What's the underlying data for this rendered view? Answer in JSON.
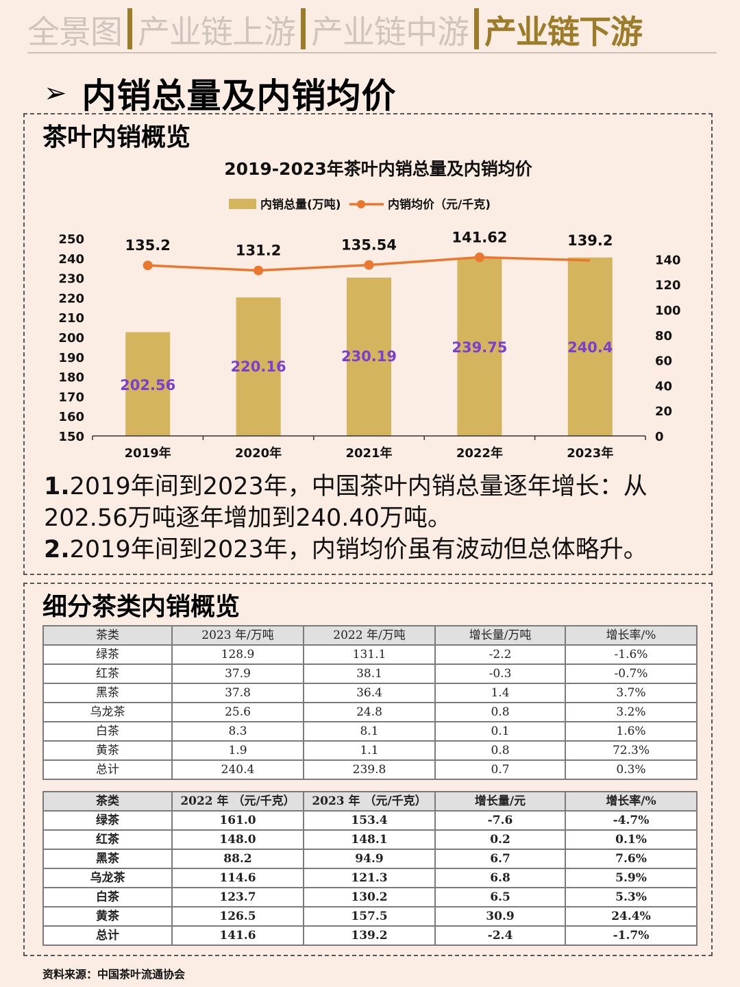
{
  "nav": {
    "tabs": [
      "全景图",
      "产业链上游",
      "产业链中游",
      "产业链下游"
    ],
    "active_index": 3,
    "accent_color": "#9c7c28"
  },
  "page_title": "内销总量及内销均价",
  "section1": {
    "title": "茶叶内销概览",
    "notes": [
      {
        "num": "1.",
        "text": "2019年间到2023年，中国茶叶内销总量逐年增长：从202.56万吨逐年增加到240.40万吨。"
      },
      {
        "num": "2.",
        "text": "2019年间到2023年，内销均价虽有波动但总体略升。"
      }
    ]
  },
  "chart_data": {
    "type": "bar",
    "title": "2019-2023年茶叶内销总量及内销均价",
    "categories": [
      "2019年",
      "2020年",
      "2021年",
      "2022年",
      "2023年"
    ],
    "series": [
      {
        "name": "内销总量(万吨)",
        "type": "bar",
        "axis": "left",
        "color": "#d4b45d",
        "label_color": "#7b3fd0",
        "values": [
          202.56,
          220.16,
          230.19,
          239.75,
          240.4
        ]
      },
      {
        "name": "内销均价（元/千克)",
        "type": "line",
        "axis": "right",
        "color": "#e9772e",
        "values": [
          135.2,
          131.2,
          135.54,
          141.62,
          139.2
        ]
      }
    ],
    "y_left": {
      "min": 150,
      "max": 250,
      "ticks": [
        150,
        160,
        170,
        180,
        190,
        200,
        210,
        220,
        230,
        240,
        250
      ]
    },
    "y_right": {
      "min": 0,
      "max": 150,
      "ticks": [
        0,
        20,
        40,
        60,
        80,
        100,
        120,
        140
      ]
    },
    "legend": "top-center",
    "grid": false
  },
  "section2": {
    "title": "细分茶类内销概览",
    "table1": {
      "headers": [
        "茶类",
        "2023 年/万吨",
        "2022 年/万吨",
        "增长量/万吨",
        "增长率/%"
      ],
      "rows": [
        [
          "绿茶",
          "128.9",
          "131.1",
          "-2.2",
          "-1.6%"
        ],
        [
          "红茶",
          "37.9",
          "38.1",
          "-0.3",
          "-0.7%"
        ],
        [
          "黑茶",
          "37.8",
          "36.4",
          "1.4",
          "3.7%"
        ],
        [
          "乌龙茶",
          "25.6",
          "24.8",
          "0.8",
          "3.2%"
        ],
        [
          "白茶",
          "8.3",
          "8.1",
          "0.1",
          "1.6%"
        ],
        [
          "黄茶",
          "1.9",
          "1.1",
          "0.8",
          "72.3%"
        ],
        [
          "总计",
          "240.4",
          "239.8",
          "0.7",
          "0.3%"
        ]
      ]
    },
    "table2": {
      "headers": [
        "茶类",
        "2022 年 （元/千克）",
        "2023 年 （元/千克）",
        "增长量/元",
        "增长率/%"
      ],
      "rows": [
        [
          "绿茶",
          "161.0",
          "153.4",
          "-7.6",
          "-4.7%"
        ],
        [
          "红茶",
          "148.0",
          "148.1",
          "0.2",
          "0.1%"
        ],
        [
          "黑茶",
          "88.2",
          "94.9",
          "6.7",
          "7.6%"
        ],
        [
          "乌龙茶",
          "114.6",
          "121.3",
          "6.8",
          "5.9%"
        ],
        [
          "白茶",
          "123.7",
          "130.2",
          "6.5",
          "5.3%"
        ],
        [
          "黄茶",
          "126.5",
          "157.5",
          "30.9",
          "24.4%"
        ],
        [
          "总计",
          "141.6",
          "139.2",
          "-2.4",
          "-1.7%"
        ]
      ]
    }
  },
  "source": "资料来源：中国茶叶流通协会"
}
